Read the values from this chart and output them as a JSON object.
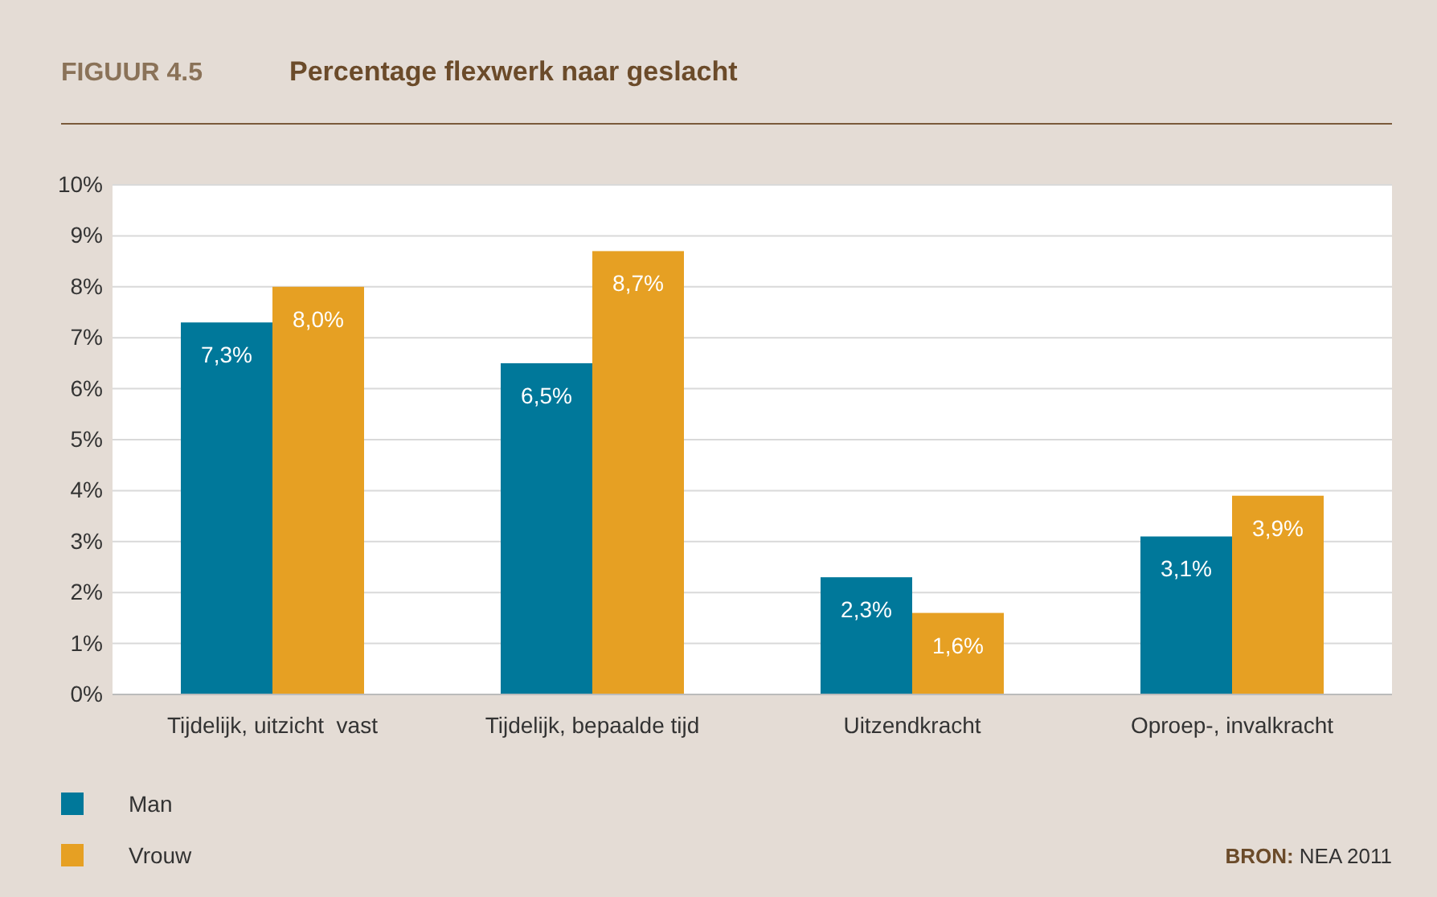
{
  "chart_data": {
    "type": "bar",
    "title": "Percentage flexwerk naar geslacht",
    "categories": [
      "Tijdelijk, uitzicht  vast",
      "Tijdelijk, bepaalde tijd",
      "Uitzendkracht",
      "Oproep-, invalkracht"
    ],
    "series": [
      {
        "name": "Man",
        "color": "#00789a",
        "values": [
          7.3,
          6.5,
          2.3,
          3.1
        ],
        "value_labels": [
          "7,3%",
          "6,5%",
          "2,3%",
          "3,1%"
        ]
      },
      {
        "name": "Vrouw",
        "color": "#e6a023",
        "values": [
          8.0,
          8.7,
          1.6,
          3.9
        ],
        "value_labels": [
          "8,0%",
          "8,7%",
          "1,6%",
          "3,9%"
        ]
      }
    ],
    "ylim": [
      0,
      10
    ],
    "yticks": [
      {
        "value": 0,
        "label": "0%"
      },
      {
        "value": 1,
        "label": "1%"
      },
      {
        "value": 2,
        "label": "2%"
      },
      {
        "value": 3,
        "label": "3%"
      },
      {
        "value": 4,
        "label": "4%"
      },
      {
        "value": 5,
        "label": "5%"
      },
      {
        "value": 6,
        "label": "6%"
      },
      {
        "value": 7,
        "label": "7%"
      },
      {
        "value": 8,
        "label": "8%"
      },
      {
        "value": 9,
        "label": "9%"
      },
      {
        "value": 10,
        "label": "10%"
      }
    ],
    "grid": "y",
    "legend": "bottom left",
    "annotations": [
      "FIGUUR 4.5",
      "BRON: NEA 2011"
    ]
  }
}
